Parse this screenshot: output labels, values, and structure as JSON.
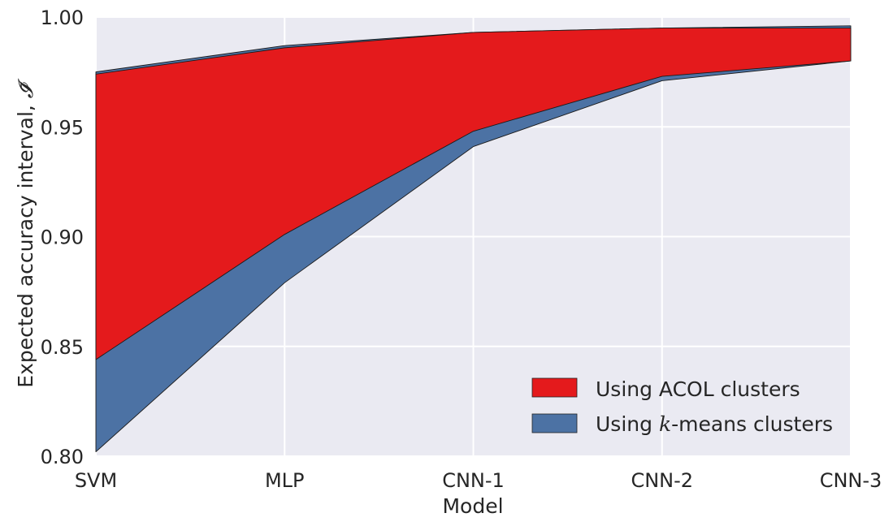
{
  "chart_data": {
    "type": "area",
    "title": "",
    "xlabel": "Model",
    "ylabel_prefix": "Expected accuracy interval, ",
    "ylabel_symbol": "𝓘̄",
    "categories": [
      "SVM",
      "MLP",
      "CNN-1",
      "CNN-2",
      "CNN-3"
    ],
    "ylim": [
      0.8,
      1.0
    ],
    "yticks": [
      "0.80",
      "0.85",
      "0.90",
      "0.95",
      "1.00"
    ],
    "ytick_values": [
      0.8,
      0.85,
      0.9,
      0.95,
      1.0
    ],
    "grid": true,
    "legend_position": "lower-right",
    "series": [
      {
        "name": "Using ACOL clusters",
        "color": "#e41a1c",
        "lower": [
          0.844,
          0.901,
          0.948,
          0.973,
          0.98
        ],
        "upper": [
          0.974,
          0.986,
          0.993,
          0.995,
          0.995
        ]
      },
      {
        "name_prefix": "Using ",
        "name_math": "k",
        "name_suffix": "-means clusters",
        "color": "#4c72a4",
        "lower": [
          0.802,
          0.879,
          0.941,
          0.971,
          0.98
        ],
        "upper": [
          0.975,
          0.987,
          0.993,
          0.995,
          0.996
        ]
      }
    ]
  }
}
